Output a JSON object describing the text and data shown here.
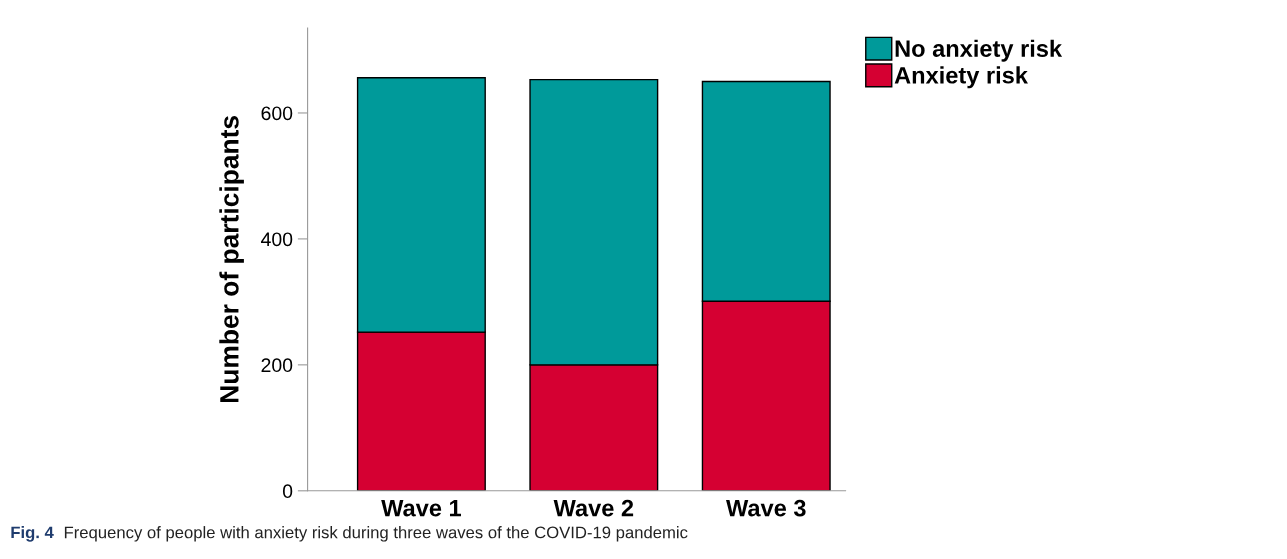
{
  "chart_data": {
    "type": "bar",
    "stacked": true,
    "ylabel": "Number of participants",
    "categories": [
      "Wave 1",
      "Wave 2",
      "Wave 3"
    ],
    "series": [
      {
        "name": "Anxiety risk",
        "color": "#d50032",
        "values": [
          252,
          200,
          301
        ]
      },
      {
        "name": "No anxiety risk",
        "color": "#009a9a",
        "values": [
          404,
          453,
          349
        ]
      }
    ],
    "ylim": [
      0,
      735
    ],
    "yticks": [
      0,
      200,
      400,
      600
    ],
    "grid": false,
    "legend": "top right",
    "annotations": [
      "Fig. 4",
      "Frequency of people with anxiety risk during three waves of the COVID-19 pandemic"
    ]
  }
}
